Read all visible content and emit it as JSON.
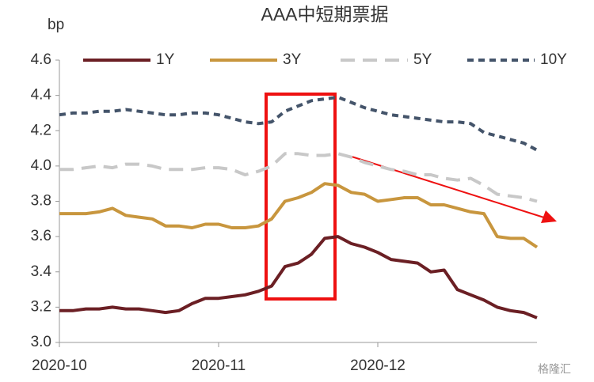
{
  "chart_data": {
    "type": "line",
    "title": "AAA中短期票据",
    "ylabel": "bp",
    "categories": [
      "2020-10",
      null,
      null,
      null,
      null,
      null,
      null,
      null,
      null,
      null,
      null,
      null,
      "2020-11",
      null,
      null,
      null,
      null,
      null,
      null,
      null,
      null,
      null,
      null,
      null,
      "2020-12",
      null,
      null,
      null,
      null,
      null,
      null,
      null,
      null,
      null,
      null,
      null,
      null
    ],
    "series": [
      {
        "name": "1Y",
        "color": "#6b1f24",
        "style": "solid",
        "values": [
          3.18,
          3.18,
          3.19,
          3.19,
          3.2,
          3.19,
          3.19,
          3.18,
          3.17,
          3.18,
          3.22,
          3.25,
          3.25,
          3.26,
          3.27,
          3.29,
          3.32,
          3.43,
          3.45,
          3.5,
          3.59,
          3.6,
          3.56,
          3.54,
          3.51,
          3.47,
          3.46,
          3.45,
          3.4,
          3.41,
          3.3,
          3.27,
          3.24,
          3.2,
          3.18,
          3.17,
          3.14
        ]
      },
      {
        "name": "3Y",
        "color": "#c8963e",
        "style": "solid",
        "values": [
          3.73,
          3.73,
          3.73,
          3.74,
          3.76,
          3.72,
          3.71,
          3.7,
          3.66,
          3.66,
          3.65,
          3.67,
          3.67,
          3.65,
          3.65,
          3.66,
          3.7,
          3.8,
          3.82,
          3.85,
          3.9,
          3.89,
          3.85,
          3.84,
          3.8,
          3.81,
          3.82,
          3.82,
          3.78,
          3.78,
          3.76,
          3.74,
          3.73,
          3.6,
          3.59,
          3.59,
          3.54
        ]
      },
      {
        "name": "5Y",
        "color": "#c8c8c8",
        "style": "dash",
        "values": [
          3.98,
          3.98,
          3.99,
          4.0,
          3.99,
          4.01,
          4.01,
          4.0,
          3.98,
          3.98,
          3.98,
          3.99,
          3.99,
          3.98,
          3.95,
          3.97,
          4.0,
          4.07,
          4.07,
          4.06,
          4.06,
          4.07,
          4.05,
          4.02,
          4.0,
          3.98,
          3.97,
          3.95,
          3.95,
          3.93,
          3.92,
          3.93,
          3.89,
          3.84,
          3.83,
          3.82,
          3.8
        ]
      },
      {
        "name": "10Y",
        "color": "#44546a",
        "style": "dot",
        "values": [
          4.29,
          4.3,
          4.3,
          4.31,
          4.31,
          4.32,
          4.31,
          4.3,
          4.29,
          4.29,
          4.3,
          4.3,
          4.29,
          4.27,
          4.25,
          4.24,
          4.25,
          4.31,
          4.34,
          4.37,
          4.38,
          4.39,
          4.36,
          4.33,
          4.31,
          4.29,
          4.28,
          4.27,
          4.26,
          4.25,
          4.25,
          4.24,
          4.19,
          4.17,
          4.15,
          4.13,
          4.09
        ]
      }
    ],
    "ylim": [
      3.0,
      4.6
    ],
    "yticks": [
      {
        "value": 3.0,
        "label": "3.0"
      },
      3.2,
      3.4,
      3.6,
      3.8,
      {
        "value": 4.0,
        "label": "4.0"
      },
      4.2,
      4.4,
      4.6
    ],
    "grid": false,
    "legend": "top",
    "watermark": "格隆汇"
  }
}
